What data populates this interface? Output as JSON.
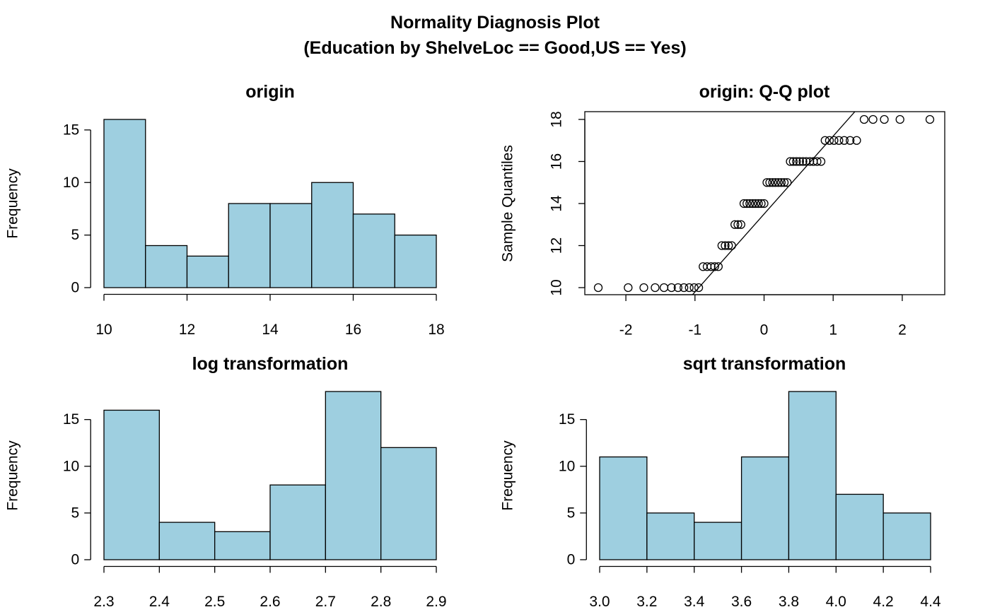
{
  "title": "Normality Diagnosis Plot",
  "subtitle": "(Education by ShelveLoc == Good,US == Yes)",
  "chart_data": [
    {
      "type": "histogram",
      "title": "origin",
      "ylabel": "Frequency",
      "color": "#9ecfe0",
      "bins": [
        10,
        11,
        12,
        13,
        14,
        15,
        16,
        17,
        18
      ],
      "values": [
        16,
        4,
        3,
        8,
        8,
        10,
        7,
        5
      ],
      "xlim": [
        10,
        18
      ],
      "xticks": [
        10,
        12,
        14,
        16,
        18
      ],
      "ylim": [
        0,
        16
      ],
      "yticks": [
        0,
        5,
        10,
        15
      ]
    },
    {
      "type": "scatter",
      "title": "origin: Q-Q plot",
      "ylabel": "Sample Quantiles",
      "x": [
        -2.4,
        -1.967,
        -1.74,
        -1.577,
        -1.448,
        -1.34,
        -1.245,
        -1.16,
        -1.083,
        -1.012,
        -0.946,
        -0.883,
        -0.824,
        -0.767,
        -0.714,
        -0.662,
        -0.611,
        -0.563,
        -0.515,
        -0.469,
        -0.423,
        -0.379,
        -0.335,
        -0.292,
        -0.249,
        -0.207,
        -0.165,
        -0.124,
        -0.082,
        -0.041,
        0,
        0.041,
        0.082,
        0.124,
        0.165,
        0.207,
        0.249,
        0.292,
        0.335,
        0.379,
        0.423,
        0.469,
        0.515,
        0.563,
        0.611,
        0.662,
        0.714,
        0.767,
        0.824,
        0.883,
        0.946,
        1.012,
        1.083,
        1.16,
        1.245,
        1.34,
        1.448,
        1.577,
        1.74,
        1.967,
        2.4
      ],
      "values": [
        10,
        10,
        10,
        10,
        10,
        10,
        10,
        10,
        10,
        10,
        10,
        11,
        11,
        11,
        11,
        11,
        12,
        12,
        12,
        12,
        13,
        13,
        13,
        14,
        14,
        14,
        14,
        14,
        14,
        14,
        14,
        15,
        15,
        15,
        15,
        15,
        15,
        15,
        15,
        16,
        16,
        16,
        16,
        16,
        16,
        16,
        16,
        16,
        16,
        17,
        17,
        17,
        17,
        17,
        17,
        17,
        18,
        18,
        18,
        18,
        18
      ],
      "reference_line": {
        "intercept": 13.5,
        "slope": 3.706
      },
      "xlim": [
        -2.4,
        2.4
      ],
      "xticks": [
        -2,
        -1,
        0,
        1,
        2
      ],
      "ylim": [
        10,
        18
      ],
      "yticks": [
        10,
        12,
        14,
        16,
        18
      ]
    },
    {
      "type": "histogram",
      "title": "log transformation",
      "ylabel": "Frequency",
      "color": "#9ecfe0",
      "bins": [
        2.3,
        2.4,
        2.5,
        2.6,
        2.7,
        2.8,
        2.9
      ],
      "values": [
        16,
        4,
        3,
        8,
        18,
        12
      ],
      "xlim": [
        2.3,
        2.9
      ],
      "xticks": [
        2.3,
        2.4,
        2.5,
        2.6,
        2.7,
        2.8,
        2.9
      ],
      "ylim": [
        0,
        18
      ],
      "yticks": [
        0,
        5,
        10,
        15
      ]
    },
    {
      "type": "histogram",
      "title": "sqrt transformation",
      "ylabel": "Frequency",
      "color": "#9ecfe0",
      "bins": [
        3,
        3.2,
        3.4,
        3.6,
        3.8,
        4,
        4.2,
        4.4
      ],
      "values": [
        11,
        5,
        4,
        11,
        18,
        7,
        5
      ],
      "xlim": [
        3,
        4.4
      ],
      "xticks": [
        {
          "value": 3,
          "label": "3.0"
        },
        3.2,
        3.4,
        3.6,
        3.8,
        {
          "value": 4,
          "label": "4.0"
        },
        4.2,
        4.4
      ],
      "ylim": [
        0,
        18
      ],
      "yticks": [
        0,
        5,
        10,
        15
      ]
    }
  ]
}
